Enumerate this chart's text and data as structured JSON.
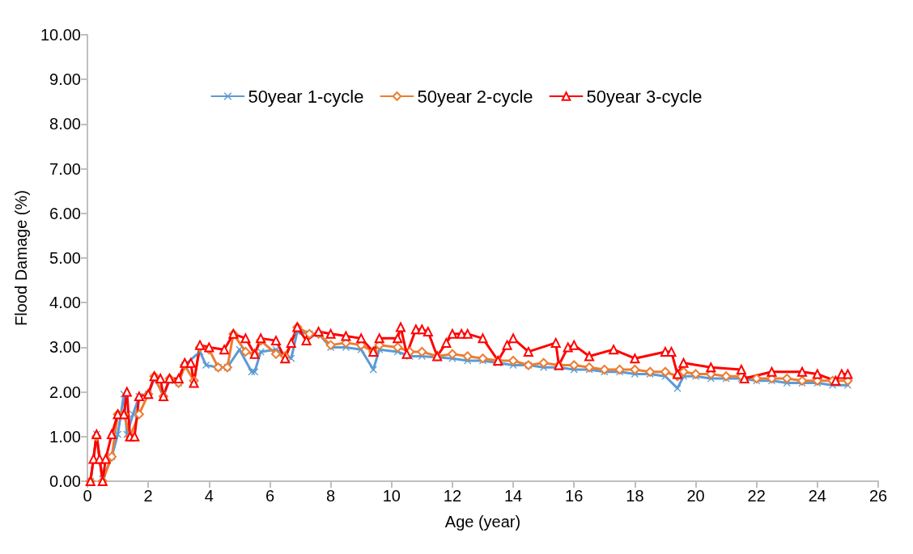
{
  "chart_data": {
    "type": "line",
    "xlabel": "Age (year)",
    "ylabel": "Flood Damage (%)",
    "xlim": [
      0,
      26
    ],
    "xticks": [
      0,
      2,
      4,
      6,
      8,
      10,
      12,
      14,
      16,
      18,
      20,
      22,
      24,
      26
    ],
    "ylim": [
      0,
      10
    ],
    "yticks": [
      {
        "value": 0,
        "label": "0.00"
      },
      {
        "value": 1,
        "label": "1.00"
      },
      {
        "value": 2,
        "label": "2.00"
      },
      {
        "value": 3,
        "label": "3.00"
      },
      {
        "value": 4,
        "label": "4.00"
      },
      {
        "value": 5,
        "label": "5.00"
      },
      {
        "value": 6,
        "label": "6.00"
      },
      {
        "value": 7,
        "label": "7.00"
      },
      {
        "value": 8,
        "label": "8.00"
      },
      {
        "value": 9,
        "label": "9.00"
      },
      {
        "value": 10,
        "label": "10.00"
      }
    ],
    "grid": false,
    "legend": "top",
    "line_style": "solid",
    "series": [
      {
        "name": "50year 1-cycle",
        "color": "#5b9bd5",
        "marker": "cross",
        "x": [
          0.1,
          0.3,
          0.5,
          0.8,
          1.0,
          1.2,
          1.3,
          1.5,
          1.7,
          2.0,
          2.2,
          2.5,
          2.7,
          3.0,
          3.2,
          3.5,
          3.7,
          3.9,
          4.3,
          4.6,
          5.0,
          5.4,
          5.5,
          5.7,
          6.2,
          6.7,
          6.9,
          7.3,
          7.6,
          8.0,
          8.5,
          9.0,
          9.4,
          9.6,
          10.2,
          10.6,
          11.0,
          11.5,
          12.0,
          12.5,
          13.0,
          13.5,
          14.0,
          14.5,
          15.0,
          15.5,
          16.0,
          16.5,
          17.0,
          17.5,
          18.0,
          18.5,
          19.0,
          19.4,
          19.6,
          20.0,
          20.5,
          21.0,
          21.5,
          22.0,
          22.5,
          23.0,
          23.5,
          24.0,
          24.5,
          25.0
        ],
        "values": [
          0,
          1.05,
          0.05,
          0.55,
          1.05,
          1.95,
          1.05,
          1.5,
          1.9,
          1.95,
          2.3,
          1.95,
          2.25,
          2.2,
          2.6,
          null,
          2.9,
          2.6,
          2.55,
          2.55,
          2.95,
          2.45,
          2.45,
          2.9,
          2.95,
          2.75,
          3.35,
          3.3,
          3.3,
          3.0,
          3.0,
          2.95,
          2.5,
          2.95,
          2.9,
          2.8,
          2.8,
          null,
          2.75,
          2.7,
          2.7,
          2.65,
          2.6,
          2.6,
          2.55,
          2.55,
          2.5,
          2.5,
          2.45,
          2.45,
          2.4,
          2.4,
          2.35,
          2.08,
          2.35,
          2.35,
          2.3,
          2.3,
          2.3,
          2.25,
          2.25,
          2.2,
          2.2,
          2.2,
          2.15,
          2.15
        ]
      },
      {
        "name": "50year 2-cycle",
        "color": "#ed7d31",
        "marker": "diamond",
        "x": [
          0.1,
          0.3,
          0.5,
          0.8,
          1.0,
          1.2,
          1.4,
          1.7,
          2.0,
          2.2,
          2.5,
          2.7,
          3.0,
          3.2,
          3.5,
          3.7,
          4.0,
          4.3,
          4.6,
          4.8,
          5.2,
          5.5,
          5.7,
          6.2,
          6.5,
          6.9,
          7.3,
          7.6,
          8.0,
          8.5,
          9.0,
          9.4,
          9.6,
          10.2,
          10.6,
          11.0,
          11.5,
          12.0,
          12.5,
          13.0,
          13.5,
          14.0,
          14.5,
          15.0,
          15.5,
          16.0,
          16.5,
          17.0,
          17.5,
          18.0,
          18.5,
          19.0,
          19.4,
          19.6,
          20.0,
          20.5,
          21.0,
          21.5,
          22.0,
          22.5,
          23.0,
          23.5,
          24.0,
          24.5,
          25.0
        ],
        "values": [
          0,
          1.0,
          0,
          0.55,
          1.5,
          1.5,
          1.0,
          1.5,
          1.95,
          2.35,
          1.9,
          2.3,
          2.2,
          2.6,
          2.25,
          3.0,
          2.95,
          2.55,
          2.55,
          3.3,
          2.9,
          2.85,
          3.15,
          2.85,
          2.8,
          3.45,
          3.3,
          3.3,
          3.05,
          3.1,
          3.05,
          2.9,
          3.05,
          3.0,
          2.9,
          2.9,
          2.8,
          2.85,
          2.8,
          2.75,
          2.7,
          2.7,
          2.6,
          2.65,
          2.6,
          2.6,
          2.55,
          2.5,
          2.5,
          2.5,
          2.45,
          2.45,
          2.35,
          2.45,
          2.4,
          2.4,
          2.35,
          2.35,
          2.3,
          2.3,
          2.3,
          2.25,
          2.25,
          2.25,
          2.25
        ]
      },
      {
        "name": "50year 3-cycle",
        "color": "#ff0000",
        "marker": "triangle",
        "x": [
          0.1,
          0.2,
          0.3,
          0.4,
          0.5,
          0.6,
          0.8,
          1.0,
          1.2,
          1.3,
          1.4,
          1.55,
          1.7,
          2.0,
          2.2,
          2.4,
          2.5,
          2.7,
          3.0,
          3.2,
          3.4,
          3.5,
          3.7,
          4.0,
          4.5,
          4.8,
          5.2,
          5.5,
          5.7,
          6.2,
          6.5,
          6.7,
          6.9,
          7.2,
          7.6,
          8.0,
          8.5,
          9.0,
          9.4,
          9.6,
          10.2,
          10.3,
          10.5,
          10.8,
          11.0,
          11.2,
          11.5,
          11.8,
          12.0,
          12.3,
          12.5,
          13.0,
          13.5,
          13.8,
          14.0,
          14.5,
          15.4,
          15.5,
          15.8,
          16.0,
          16.5,
          17.3,
          18.0,
          19.0,
          19.2,
          19.4,
          19.6,
          20.5,
          21.5,
          21.6,
          22.5,
          23.5,
          24.0,
          24.6,
          24.8,
          25.0
        ],
        "values": [
          0,
          0.5,
          1.05,
          0.5,
          0,
          0.5,
          1.05,
          1.5,
          1.5,
          2.0,
          1.0,
          1.0,
          1.9,
          1.95,
          2.35,
          2.3,
          1.9,
          2.3,
          2.3,
          2.65,
          2.65,
          2.2,
          3.05,
          3.0,
          2.95,
          3.3,
          3.2,
          2.85,
          3.2,
          3.15,
          2.75,
          3.1,
          3.45,
          3.15,
          3.35,
          3.3,
          3.25,
          3.2,
          2.9,
          3.2,
          3.2,
          3.45,
          2.85,
          3.4,
          3.4,
          3.35,
          2.8,
          3.1,
          3.3,
          3.3,
          3.3,
          3.2,
          2.7,
          3.05,
          3.2,
          2.9,
          3.1,
          2.6,
          3.0,
          3.05,
          2.8,
          2.95,
          2.75,
          2.9,
          2.9,
          2.4,
          2.65,
          2.55,
          2.5,
          2.3,
          2.45,
          2.45,
          2.4,
          2.25,
          2.4,
          2.4
        ]
      }
    ]
  }
}
